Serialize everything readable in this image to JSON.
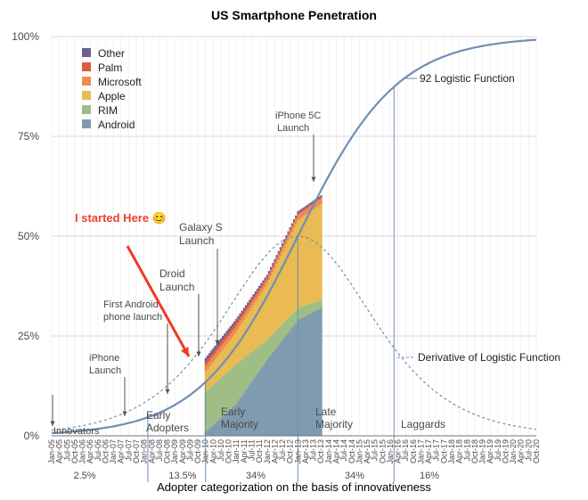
{
  "chart_data": {
    "type": "area",
    "title": "US Smartphone Penetration",
    "xlabel": "Adopter categorization on the basis of innovativeness",
    "ylabel": "",
    "ylim": [
      0,
      100
    ],
    "y_ticks": [
      "0%",
      "25%",
      "50%",
      "75%",
      "100%"
    ],
    "x_period_quarters": {
      "first": "Jan-05",
      "last": "Oct-20"
    },
    "series": [
      {
        "name": "Android",
        "color": "#7f9bb0",
        "values_by_year": {
          "2010": 1,
          "2011": 8,
          "2012": 19,
          "2013": 29,
          "2013-Q4": 32
        }
      },
      {
        "name": "RIM",
        "color": "#9fbe86",
        "values_by_year": {
          "2010": 10,
          "2011": 10,
          "2012": 5,
          "2013": 3,
          "2013-Q4": 2
        }
      },
      {
        "name": "Apple",
        "color": "#e9bb52",
        "values_by_year": {
          "2010": 5,
          "2011": 8,
          "2012": 14,
          "2013": 22,
          "2013-Q4": 24
        }
      },
      {
        "name": "Microsoft",
        "color": "#eb8c55",
        "values_by_year": {
          "2010": 1.5,
          "2011": 1.5,
          "2012": 1.2,
          "2013": 1.3,
          "2013-Q4": 1.5
        }
      },
      {
        "name": "Palm",
        "color": "#e05a3e",
        "values_by_year": {
          "2010": 1,
          "2011": 1,
          "2012": 0.5,
          "2013": 0.4,
          "2013-Q4": 0.3
        }
      },
      {
        "name": "Other",
        "color": "#6f5e8f",
        "values_by_year": {
          "2010": 1,
          "2011": 0.8,
          "2012": 0.6,
          "2013": 0.5,
          "2013-Q4": 0.4
        }
      }
    ],
    "logistic": {
      "label": "92 Logistic Function",
      "midpoint_quarter": 32,
      "steepness": 0.155,
      "ceiling": 100
    },
    "derivative": {
      "label": "Derivative of Logistic Function",
      "peak_percent": 50
    },
    "annotations": {
      "iphone5c": [
        "iPhone 5C",
        "Launch"
      ],
      "galaxy": [
        "Galaxy S",
        "Launch"
      ],
      "droid": [
        "Droid",
        "Launch"
      ],
      "first_android": [
        "First Android",
        "phone launch"
      ],
      "iphone": [
        "iPhone",
        "Launch"
      ],
      "started_here": "I started Here 😊"
    },
    "adopter_labels": {
      "innovators": "Innovators",
      "early_adopters": [
        "Early",
        "Adopters"
      ],
      "early_majority": [
        "Early",
        "Majority"
      ],
      "late_majority": [
        "Late",
        "Majority"
      ],
      "laggards": "Laggards"
    },
    "adopter_shares": [
      "2.5%",
      "13.5%",
      "34%",
      "34%",
      "16%"
    ],
    "legend_position": "top-left"
  }
}
